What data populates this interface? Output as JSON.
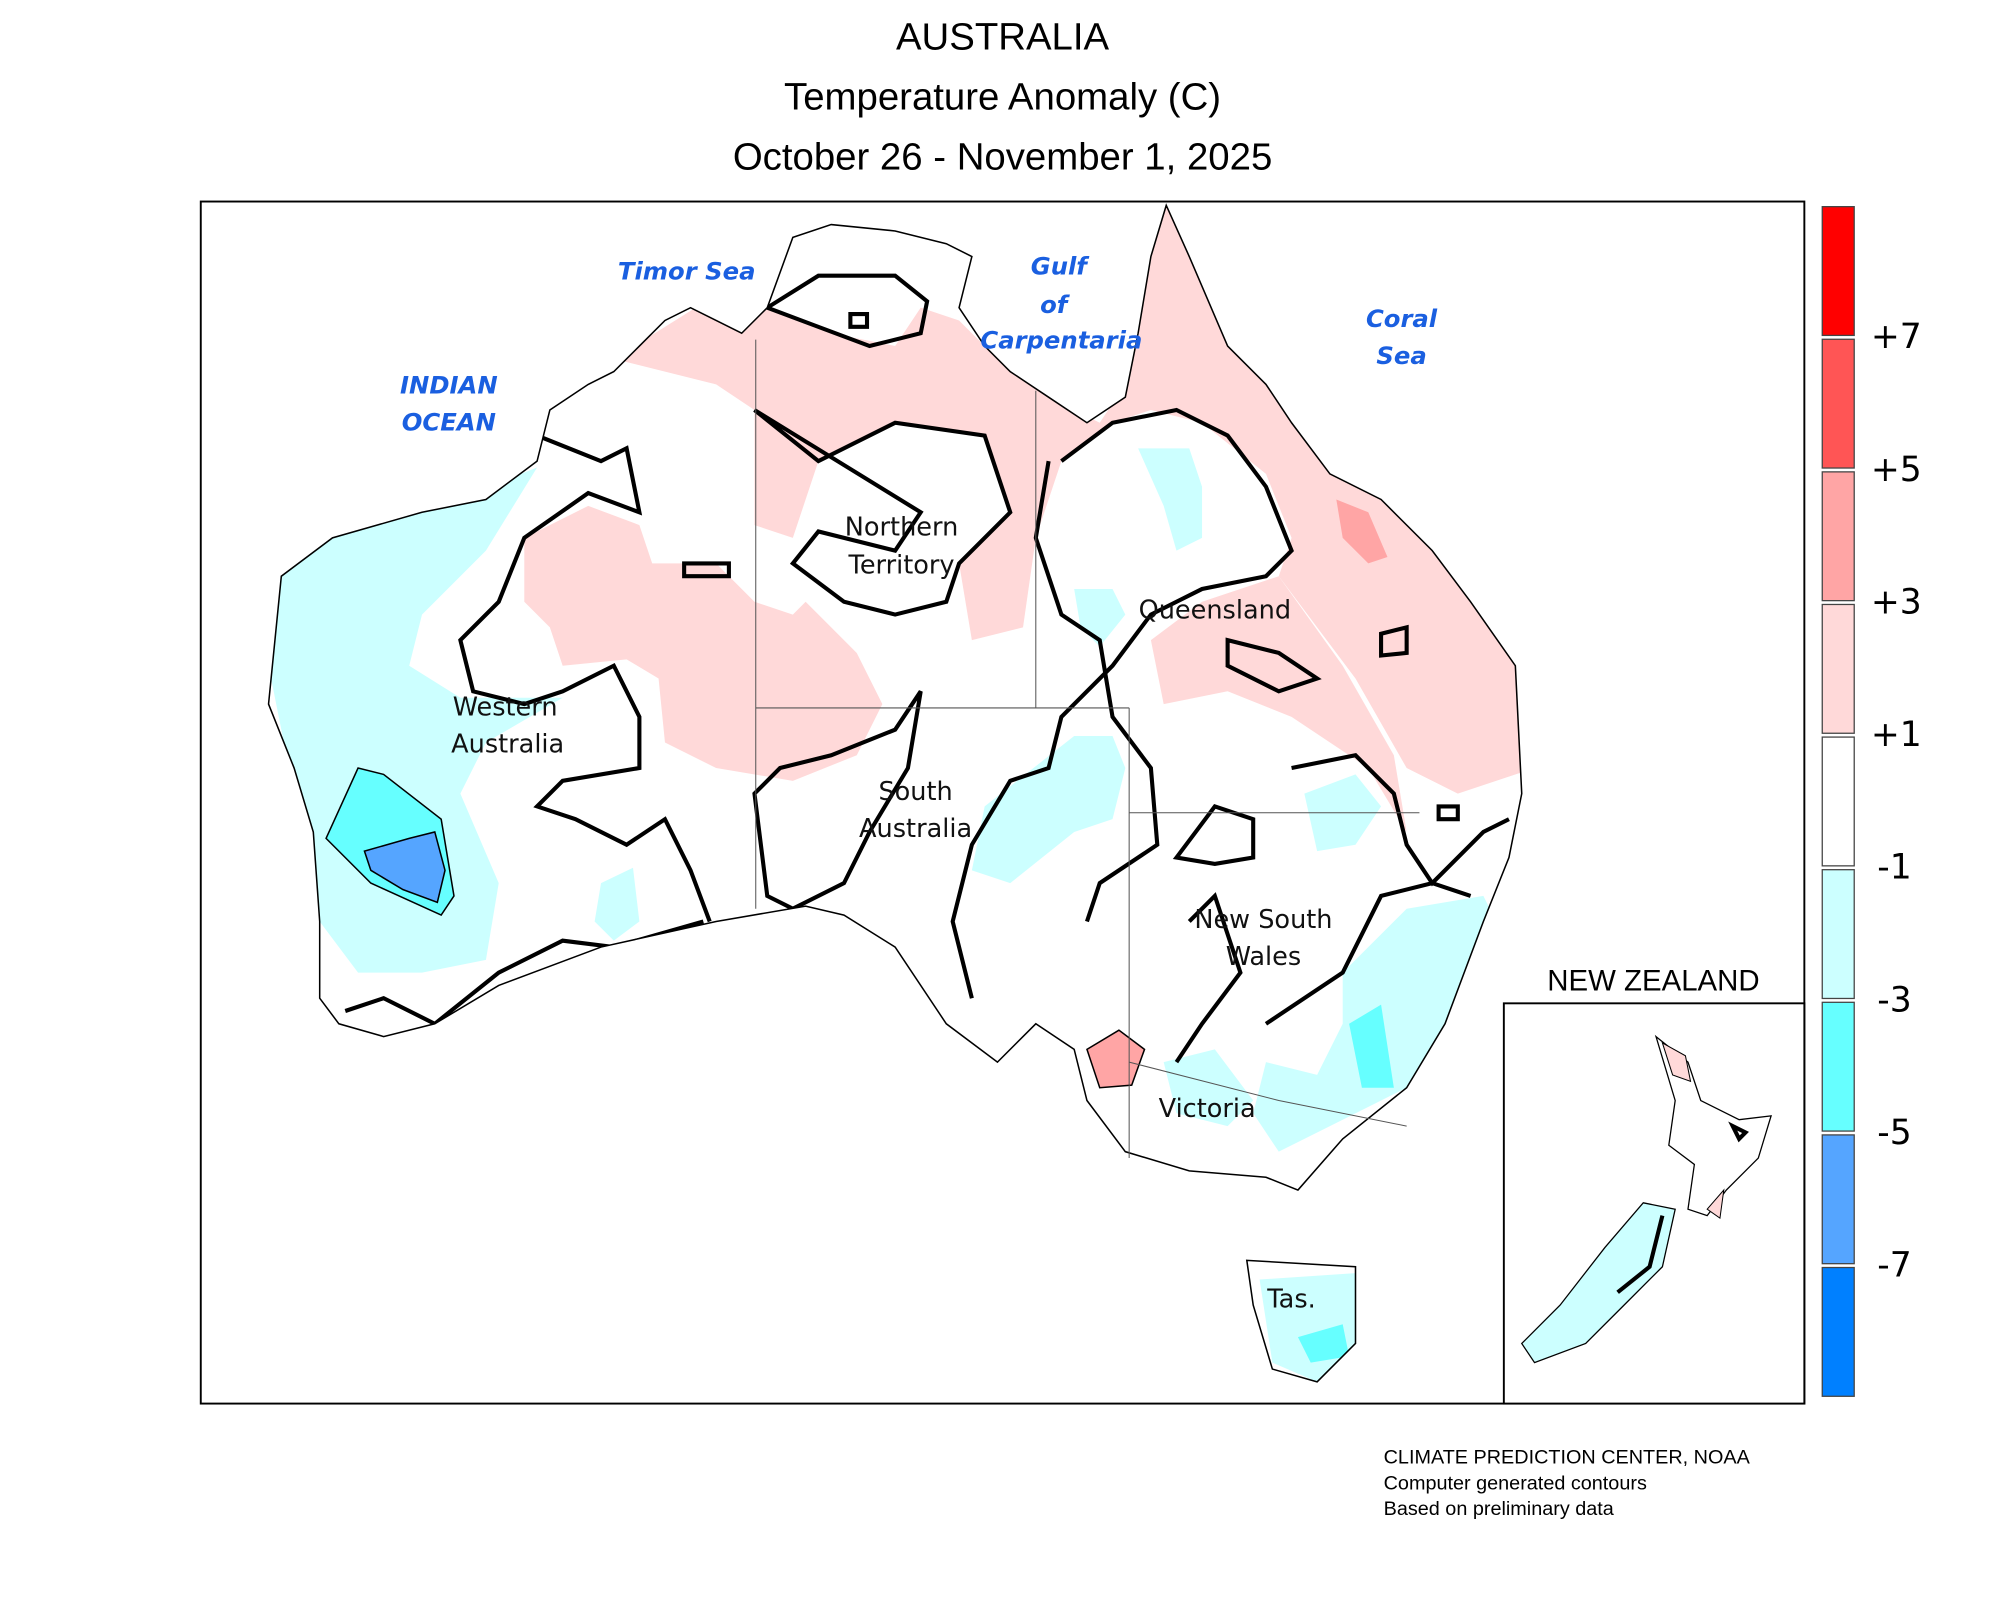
{
  "title": {
    "line1": "AUSTRALIA",
    "line2": "Temperature Anomaly (C)",
    "line3": "October 26 - November 1, 2025"
  },
  "seas": {
    "timor": "Timor Sea",
    "gulf": [
      "Gulf",
      "of",
      "Carpentaria"
    ],
    "coral": [
      "Coral",
      "Sea"
    ],
    "indian": [
      "INDIAN",
      "OCEAN"
    ]
  },
  "states": {
    "nt": [
      "Northern",
      "Territory"
    ],
    "wa": [
      "Western",
      "Australia"
    ],
    "qld": "Queensland",
    "sa": [
      "South",
      "Australia"
    ],
    "nsw": [
      "New South",
      "Wales"
    ],
    "vic": "Victoria",
    "tas": "Tas."
  },
  "inset": {
    "label": "NEW ZEALAND"
  },
  "legend": {
    "colors": [
      "#ff0000",
      "#ff5555",
      "#ffa5a5",
      "#ffd9d9",
      "#ffffff",
      "#ccffff",
      "#66ffff",
      "#55a5ff",
      "#0080ff"
    ],
    "labels": [
      "+7",
      "+5",
      "+3",
      "+1",
      "-1",
      "-3",
      "-5",
      "-7"
    ]
  },
  "credits": {
    "line1": "CLIMATE PREDICTION CENTER, NOAA",
    "line2": "Computer generated contours",
    "line3": "Based on preliminary data"
  }
}
